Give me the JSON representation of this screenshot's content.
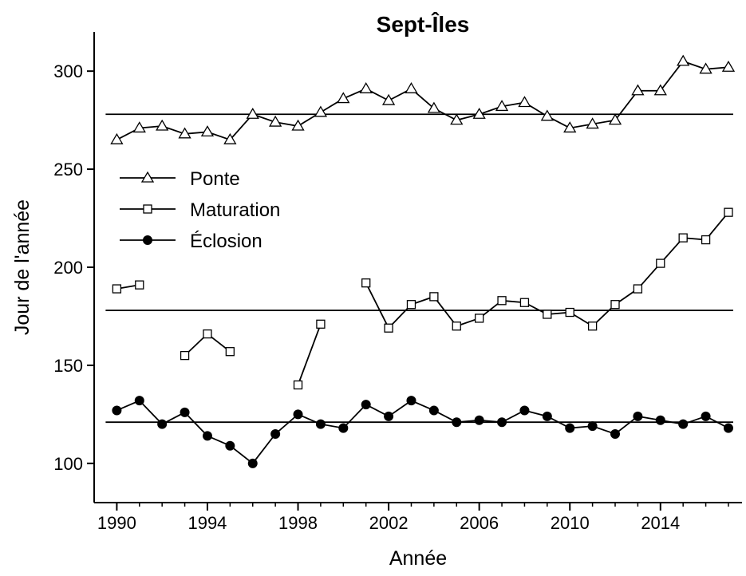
{
  "chart_data": {
    "type": "line",
    "title": "Sept-Îles",
    "xlabel": "Année",
    "ylabel": "Jour de l'année",
    "x": [
      1990,
      1991,
      1992,
      1993,
      1994,
      1995,
      1996,
      1997,
      1998,
      1999,
      2000,
      2001,
      2002,
      2003,
      2004,
      2005,
      2006,
      2007,
      2008,
      2009,
      2010,
      2011,
      2012,
      2013,
      2014,
      2015,
      2016,
      2017
    ],
    "series": [
      {
        "name": "Ponte",
        "color": "#000000",
        "marker": "triangle",
        "values": [
          265,
          271,
          272,
          268,
          269,
          265,
          278,
          274,
          272,
          279,
          286,
          291,
          285,
          291,
          281,
          275,
          278,
          282,
          284,
          277,
          271,
          273,
          275,
          290,
          290,
          305,
          301,
          302
        ]
      },
      {
        "name": "Maturation",
        "color": "#000000",
        "marker": "square",
        "values": [
          189,
          191,
          null,
          155,
          166,
          157,
          null,
          null,
          140,
          171,
          null,
          192,
          169,
          181,
          185,
          170,
          174,
          183,
          182,
          176,
          177,
          170,
          181,
          189,
          202,
          215,
          214,
          228
        ]
      },
      {
        "name": "Éclosion",
        "color": "#000000",
        "marker": "circle",
        "values": [
          127,
          132,
          120,
          126,
          114,
          109,
          100,
          115,
          125,
          120,
          118,
          130,
          124,
          132,
          127,
          121,
          122,
          121,
          127,
          124,
          118,
          119,
          115,
          124,
          122,
          120,
          124,
          118
        ]
      }
    ],
    "hlines": [
      278,
      178,
      121
    ],
    "xlim": [
      1989,
      2017.6
    ],
    "ylim": [
      80,
      320
    ],
    "xticks": [
      1990,
      1994,
      1998,
      2002,
      2006,
      2010,
      2014
    ],
    "yticks": [
      100,
      150,
      200,
      250,
      300
    ],
    "legend": "upper left"
  }
}
